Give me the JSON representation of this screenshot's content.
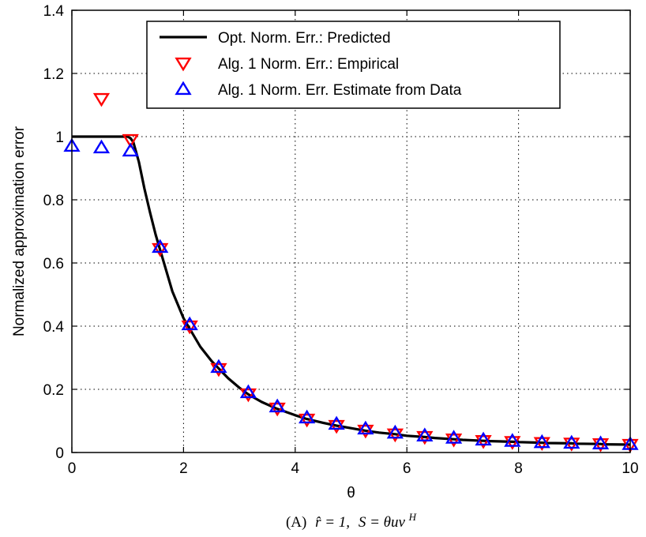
{
  "chart_data": {
    "type": "line",
    "xlabel": "θ",
    "ylabel": "Normalized approximation error",
    "xlim": [
      0,
      10
    ],
    "ylim": [
      0,
      1.4
    ],
    "xticks": [
      0,
      2,
      4,
      6,
      8,
      10
    ],
    "xtick_labels": [
      "0",
      "2",
      "4",
      "6",
      "8",
      "10"
    ],
    "yticks": [
      0,
      0.2,
      0.4,
      0.6,
      0.8,
      1,
      1.2,
      1.4
    ],
    "ytick_labels": [
      "0",
      "0.2",
      "0.4",
      "0.6",
      "0.8",
      "1",
      "1.2",
      "1.4"
    ],
    "grid": true,
    "legend_position": "top-right",
    "series": [
      {
        "name": "Opt. Norm. Err.: Predicted",
        "style": "line",
        "color": "#000000",
        "x": [
          0,
          1,
          1.05,
          1.1,
          1.2,
          1.3,
          1.4,
          1.5,
          1.6,
          1.8,
          2.0,
          2.1,
          2.3,
          2.5,
          2.63,
          2.8,
          3.0,
          3.16,
          3.4,
          3.68,
          4.0,
          4.21,
          4.5,
          4.74,
          5.0,
          5.26,
          5.5,
          5.79,
          6.0,
          6.32,
          6.5,
          6.84,
          7.0,
          7.37,
          7.5,
          7.89,
          8.0,
          8.42,
          8.5,
          8.95,
          9.0,
          9.47,
          9.5,
          10.0
        ],
        "y": [
          1,
          1,
          0.995,
          0.983,
          0.92,
          0.835,
          0.76,
          0.69,
          0.63,
          0.51,
          0.425,
          0.395,
          0.335,
          0.29,
          0.266,
          0.235,
          0.205,
          0.184,
          0.16,
          0.138,
          0.118,
          0.106,
          0.094,
          0.085,
          0.077,
          0.069,
          0.063,
          0.058,
          0.053,
          0.049,
          0.046,
          0.042,
          0.04,
          0.037,
          0.036,
          0.034,
          0.033,
          0.031,
          0.03,
          0.029,
          0.028,
          0.027,
          0.026,
          0.025
        ]
      },
      {
        "name": "Alg. 1 Norm. Err.: Empirical",
        "style": "triangle-down",
        "color": "#ff0000",
        "x": [
          0.53,
          1.05,
          1.58,
          2.11,
          2.63,
          3.16,
          3.68,
          4.21,
          4.74,
          5.26,
          5.79,
          6.32,
          6.84,
          7.37,
          7.89,
          8.42,
          8.95,
          9.47,
          10.0
        ],
        "y": [
          1.12,
          0.99,
          0.645,
          0.4,
          0.265,
          0.185,
          0.14,
          0.105,
          0.085,
          0.07,
          0.058,
          0.05,
          0.042,
          0.037,
          0.034,
          0.031,
          0.029,
          0.027,
          0.025
        ]
      },
      {
        "name": "Alg. 1 Norm. Err. Estimate from Data",
        "style": "triangle-up",
        "color": "#0000ff",
        "x": [
          0,
          0.53,
          1.05,
          1.58,
          2.11,
          2.63,
          3.16,
          3.68,
          4.21,
          4.74,
          5.26,
          5.79,
          6.32,
          6.84,
          7.37,
          7.89,
          8.42,
          8.95,
          9.47,
          10.0
        ],
        "y": [
          0.97,
          0.965,
          0.955,
          0.65,
          0.405,
          0.27,
          0.19,
          0.145,
          0.11,
          0.09,
          0.075,
          0.062,
          0.053,
          0.046,
          0.04,
          0.036,
          0.032,
          0.03,
          0.028,
          0.026
        ]
      }
    ],
    "caption": {
      "label": "(A)",
      "rhat": "r̂ = 1,",
      "formula_prefix": "S = θuv",
      "formula_sup": "H"
    }
  }
}
